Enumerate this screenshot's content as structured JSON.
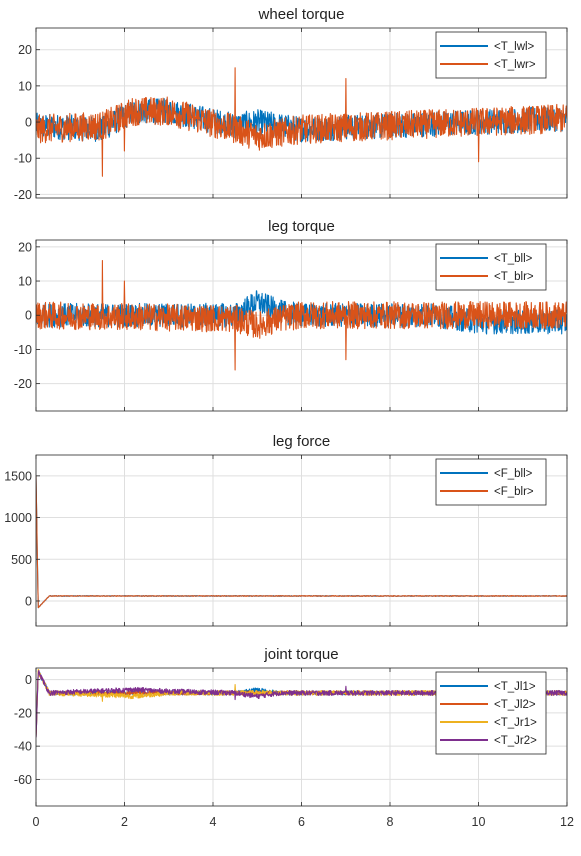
{
  "chart_data": [
    {
      "type": "line",
      "title": "wheel torque",
      "xlim": [
        0,
        12
      ],
      "ylim": [
        -21,
        26
      ],
      "yticks": [
        -20,
        -10,
        0,
        10,
        20
      ],
      "xticks": [
        0,
        2,
        4,
        6,
        8,
        10,
        12
      ],
      "show_xtick_labels": false,
      "grid": true,
      "legend": "top-right",
      "series": [
        {
          "name": "<T_lwl>",
          "color": "#0072BD",
          "baseline": [
            [
              0,
              -1
            ],
            [
              1.5,
              -2
            ],
            [
              2.2,
              3
            ],
            [
              3,
              3
            ],
            [
              4.5,
              -1
            ],
            [
              5,
              0
            ],
            [
              6,
              -2
            ],
            [
              8,
              -1
            ],
            [
              10,
              0
            ],
            [
              12,
              1
            ]
          ],
          "noise": 3.5,
          "spikes": []
        },
        {
          "name": "<T_lwr>",
          "color": "#D95319",
          "baseline": [
            [
              0,
              -2
            ],
            [
              1.5,
              -1
            ],
            [
              2.2,
              3
            ],
            [
              3,
              3
            ],
            [
              4.5,
              -2
            ],
            [
              5,
              -4
            ],
            [
              6,
              -2
            ],
            [
              8,
              -1
            ],
            [
              10,
              0
            ],
            [
              12,
              1
            ]
          ],
          "noise": 4,
          "spikes": [
            [
              1.5,
              -15
            ],
            [
              2.0,
              -8
            ],
            [
              4.5,
              15
            ],
            [
              7.0,
              12
            ],
            [
              10.0,
              -11
            ]
          ]
        }
      ]
    },
    {
      "type": "line",
      "title": "leg torque",
      "xlim": [
        0,
        12
      ],
      "ylim": [
        -28,
        22
      ],
      "yticks": [
        -20,
        -10,
        0,
        10,
        20
      ],
      "xticks": [
        0,
        2,
        4,
        6,
        8,
        10,
        12
      ],
      "show_xtick_labels": false,
      "grid": true,
      "legend": "top-right",
      "series": [
        {
          "name": "<T_bll>",
          "color": "#0072BD",
          "baseline": [
            [
              0,
              0
            ],
            [
              4.5,
              0
            ],
            [
              5,
              4
            ],
            [
              5.5,
              1
            ],
            [
              6,
              0
            ],
            [
              9,
              0
            ],
            [
              10,
              -2
            ],
            [
              12,
              -2
            ]
          ],
          "noise": 3.5,
          "spikes": []
        },
        {
          "name": "<T_blr>",
          "color": "#D95319",
          "baseline": [
            [
              0,
              0
            ],
            [
              4.5,
              -1
            ],
            [
              5,
              -3
            ],
            [
              5.5,
              -1
            ],
            [
              6,
              0
            ],
            [
              12,
              0
            ]
          ],
          "noise": 4,
          "spikes": [
            [
              1.5,
              16
            ],
            [
              2.0,
              10
            ],
            [
              4.5,
              -16
            ],
            [
              7.0,
              -13
            ]
          ]
        }
      ]
    },
    {
      "type": "line",
      "title": "leg force",
      "xlim": [
        0,
        12
      ],
      "ylim": [
        -300,
        1750
      ],
      "yticks": [
        0,
        500,
        1000,
        1500
      ],
      "xticks": [
        0,
        2,
        4,
        6,
        8,
        10,
        12
      ],
      "show_xtick_labels": false,
      "grid": true,
      "legend": "top-right",
      "series": [
        {
          "name": "<F_bll>",
          "color": "#0072BD",
          "baseline": [
            [
              0,
              1500
            ],
            [
              0.05,
              -80
            ],
            [
              0.3,
              60
            ],
            [
              12,
              60
            ]
          ],
          "noise": 4,
          "spikes": []
        },
        {
          "name": "<F_blr>",
          "color": "#D95319",
          "baseline": [
            [
              0,
              1500
            ],
            [
              0.05,
              -80
            ],
            [
              0.3,
              60
            ],
            [
              12,
              60
            ]
          ],
          "noise": 4,
          "spikes": []
        }
      ]
    },
    {
      "type": "line",
      "title": "joint torque",
      "xlim": [
        0,
        12
      ],
      "ylim": [
        -76,
        7
      ],
      "yticks": [
        -60,
        -40,
        -20,
        0
      ],
      "xticks": [
        0,
        2,
        4,
        6,
        8,
        10,
        12
      ],
      "xtick_labels": [
        "0",
        "2",
        "4",
        "6",
        "8",
        "10",
        "12"
      ],
      "show_xtick_labels": true,
      "grid": true,
      "legend": "top-right",
      "series": [
        {
          "name": "<T_Jl1>",
          "color": "#0072BD",
          "baseline": [
            [
              0,
              -35
            ],
            [
              0.05,
              5
            ],
            [
              0.3,
              -8
            ],
            [
              4.5,
              -8
            ],
            [
              5,
              -6
            ],
            [
              5.5,
              -8
            ],
            [
              12,
              -8
            ]
          ],
          "noise": 1.2,
          "spikes": []
        },
        {
          "name": "<T_Jl2>",
          "color": "#D95319",
          "baseline": [
            [
              0,
              -35
            ],
            [
              0.05,
              5
            ],
            [
              0.3,
              -8
            ],
            [
              12,
              -8
            ]
          ],
          "noise": 1.2,
          "spikes": []
        },
        {
          "name": "<T_Jr1>",
          "color": "#EDB120",
          "baseline": [
            [
              0,
              -35
            ],
            [
              0.05,
              5
            ],
            [
              0.3,
              -8
            ],
            [
              1.5,
              -9
            ],
            [
              2.2,
              -10
            ],
            [
              3,
              -8
            ],
            [
              12,
              -8
            ]
          ],
          "noise": 1.5,
          "spikes": [
            [
              1.5,
              -13
            ],
            [
              4.5,
              -3
            ]
          ]
        },
        {
          "name": "<T_Jr2>",
          "color": "#7E2F8E",
          "baseline": [
            [
              0,
              -35
            ],
            [
              0.05,
              5
            ],
            [
              0.3,
              -8
            ],
            [
              2.2,
              -6
            ],
            [
              3,
              -7
            ],
            [
              4.5,
              -8
            ],
            [
              5,
              -10
            ],
            [
              5.5,
              -8
            ],
            [
              12,
              -8
            ]
          ],
          "noise": 1.5,
          "spikes": [
            [
              4.5,
              -12
            ],
            [
              7.0,
              -4
            ]
          ]
        }
      ]
    }
  ]
}
